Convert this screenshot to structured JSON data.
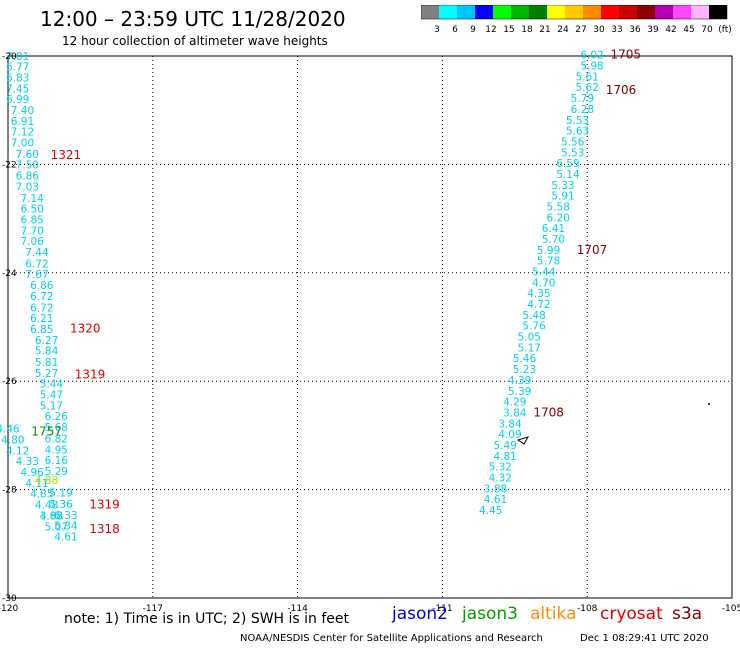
{
  "header": {
    "title": "12:00 – 23:59 UTC 11/28/2020",
    "subtitle": "12 hour collection of altimeter wave heights"
  },
  "colorbar": {
    "labels": [
      "3",
      "6",
      "9",
      "12",
      "15",
      "18",
      "21",
      "24",
      "27",
      "30",
      "33",
      "36",
      "39",
      "42",
      "45",
      "70",
      "(ft)"
    ],
    "colors": [
      "#808080",
      "#00ffff",
      "#00c8ff",
      "#0000ff",
      "#00ff00",
      "#00b400",
      "#008000",
      "#ffff00",
      "#ffc800",
      "#ff8c00",
      "#ff0000",
      "#c80000",
      "#8b0000",
      "#b400b4",
      "#ff46ff",
      "#ffb4ff",
      "#000000"
    ]
  },
  "legend": {
    "items": [
      {
        "name": "jason2",
        "color": "#0000dd"
      },
      {
        "name": "jason3",
        "color": "#00a000"
      },
      {
        "name": "altika",
        "color": "#ff8c00"
      },
      {
        "name": "cryosat",
        "color": "#dd0000"
      },
      {
        "name": "s3a",
        "color": "#880000"
      }
    ]
  },
  "note": "note: 1) Time is in UTC; 2) SWH is in feet",
  "footer": {
    "left": "NOAA/NESDIS Center for Satellite Applications and Research",
    "right": "Dec  1 08:29:41 UTC 2020"
  },
  "chart_data": {
    "type": "scatter",
    "xlim": [
      -120,
      -105
    ],
    "ylim": [
      -30,
      -20
    ],
    "x_ticks": [
      -120,
      -117,
      -114,
      -111,
      -108,
      -105
    ],
    "x_tick_labels": [
      "-120",
      "-117",
      "-114",
      "-111",
      "-108",
      "-105"
    ],
    "y_ticks": [
      -20,
      -22,
      -24,
      -26,
      -28,
      -30
    ],
    "y_tick_labels": [
      "-20",
      "-22",
      "-24",
      "-26",
      "-28",
      "-30"
    ],
    "grid": true,
    "colors": {
      "cyan": "#00d2e6",
      "teal": "#00c8c8",
      "green": "#009600",
      "lime": "#96e600",
      "red": "#dd0000",
      "darkred": "#880000"
    },
    "series": [
      {
        "color": "cyan",
        "points": [
          {
            "x": -119.8,
            "y": -20.07,
            "v": "7.01"
          },
          {
            "x": -119.8,
            "y": -20.27,
            "v": "6.77"
          },
          {
            "x": -119.8,
            "y": -20.47,
            "v": "6.83"
          },
          {
            "x": -119.8,
            "y": -20.67,
            "v": "7.45"
          },
          {
            "x": -119.8,
            "y": -20.87,
            "v": "6.99"
          },
          {
            "x": -119.7,
            "y": -21.07,
            "v": "7.40"
          },
          {
            "x": -119.7,
            "y": -21.27,
            "v": "6.91"
          },
          {
            "x": -119.7,
            "y": -21.47,
            "v": "7.12"
          },
          {
            "x": -119.7,
            "y": -21.67,
            "v": "7.00"
          },
          {
            "x": -119.6,
            "y": -21.88,
            "v": "7.60"
          },
          {
            "x": -119.6,
            "y": -22.08,
            "v": "7.50"
          },
          {
            "x": -119.6,
            "y": -22.28,
            "v": "6.86"
          },
          {
            "x": -119.6,
            "y": -22.48,
            "v": "7.03"
          },
          {
            "x": -119.5,
            "y": -22.69,
            "v": "7.14"
          },
          {
            "x": -119.5,
            "y": -22.89,
            "v": "6.50"
          },
          {
            "x": -119.5,
            "y": -23.09,
            "v": "6.85"
          },
          {
            "x": -119.5,
            "y": -23.29,
            "v": "7.70"
          },
          {
            "x": -119.5,
            "y": -23.49,
            "v": "7.06"
          },
          {
            "x": -119.4,
            "y": -23.69,
            "v": "7.44"
          },
          {
            "x": -119.4,
            "y": -23.9,
            "v": "6.72"
          },
          {
            "x": -119.4,
            "y": -24.1,
            "v": "7.67"
          },
          {
            "x": -119.3,
            "y": -24.3,
            "v": "6.86"
          },
          {
            "x": -119.3,
            "y": -24.5,
            "v": "6.72"
          },
          {
            "x": -119.3,
            "y": -24.71,
            "v": "6.72"
          },
          {
            "x": -119.3,
            "y": -24.91,
            "v": "6.21"
          },
          {
            "x": -119.3,
            "y": -25.11,
            "v": "6.85"
          },
          {
            "x": -119.2,
            "y": -25.31,
            "v": "6.27"
          },
          {
            "x": -119.2,
            "y": -25.51,
            "v": "5.84"
          },
          {
            "x": -119.2,
            "y": -25.72,
            "v": "5.81"
          },
          {
            "x": -119.2,
            "y": -25.92,
            "v": "5.27"
          },
          {
            "x": -119.1,
            "y": -26.12,
            "v": "5.44"
          },
          {
            "x": -119.1,
            "y": -26.32,
            "v": "5.47"
          },
          {
            "x": -119.1,
            "y": -26.52,
            "v": "5.17"
          },
          {
            "x": -119.0,
            "y": -26.72,
            "v": "6.26"
          },
          {
            "x": -119.0,
            "y": -26.92,
            "v": "5.68"
          },
          {
            "x": -119.0,
            "y": -27.13,
            "v": "6.82"
          },
          {
            "x": -119.0,
            "y": -27.33,
            "v": "4.95"
          },
          {
            "x": -119.0,
            "y": -27.53,
            "v": "6.16"
          },
          {
            "x": -119.0,
            "y": -27.73,
            "v": "5.29"
          },
          {
            "x": -118.9,
            "y": -28.13,
            "v": "5.19"
          },
          {
            "x": -118.9,
            "y": -28.34,
            "v": "5.36"
          },
          {
            "x": -118.8,
            "y": -28.54,
            "v": "6.33"
          },
          {
            "x": -118.8,
            "y": -28.74,
            "v": "5.34"
          },
          {
            "x": -118.8,
            "y": -28.94,
            "v": "4.61"
          },
          {
            "x": -120.0,
            "y": -26.95,
            "v": "4.46"
          },
          {
            "x": -119.9,
            "y": -27.15,
            "v": "4.80"
          },
          {
            "x": -119.8,
            "y": -27.35,
            "v": "4.12"
          },
          {
            "x": -119.6,
            "y": -27.55,
            "v": "4.33"
          },
          {
            "x": -119.5,
            "y": -27.75,
            "v": "4.96"
          },
          {
            "x": -119.4,
            "y": -27.95,
            "v": "4.11"
          },
          {
            "x": -119.3,
            "y": -28.15,
            "v": "4.85"
          },
          {
            "x": -119.2,
            "y": -28.35,
            "v": "4.48"
          },
          {
            "x": -119.1,
            "y": -28.55,
            "v": "3.88"
          },
          {
            "x": -119.1,
            "y": -28.55,
            "v": "4.63"
          },
          {
            "x": -119.0,
            "y": -28.75,
            "v": "5.07"
          },
          {
            "x": -107.9,
            "y": -20.05,
            "v": "6.02"
          },
          {
            "x": -107.9,
            "y": -20.25,
            "v": "5.98"
          },
          {
            "x": -108.0,
            "y": -20.45,
            "v": "5.61"
          },
          {
            "x": -108.0,
            "y": -20.65,
            "v": "5.62"
          },
          {
            "x": -108.1,
            "y": -20.85,
            "v": "5.79"
          },
          {
            "x": -108.1,
            "y": -21.05,
            "v": "6.28"
          },
          {
            "x": -108.2,
            "y": -21.25,
            "v": "5.53"
          },
          {
            "x": -108.2,
            "y": -21.45,
            "v": "5.63"
          },
          {
            "x": -108.3,
            "y": -21.65,
            "v": "5.56"
          },
          {
            "x": -108.3,
            "y": -21.85,
            "v": "5.53"
          },
          {
            "x": -108.4,
            "y": -22.05,
            "v": "6.59"
          },
          {
            "x": -108.4,
            "y": -22.25,
            "v": "5.14"
          },
          {
            "x": -108.5,
            "y": -22.45,
            "v": "5.33"
          },
          {
            "x": -108.5,
            "y": -22.65,
            "v": "5.91"
          },
          {
            "x": -108.6,
            "y": -22.85,
            "v": "5.58"
          },
          {
            "x": -108.6,
            "y": -23.05,
            "v": "6.20"
          },
          {
            "x": -108.7,
            "y": -23.25,
            "v": "6.41"
          },
          {
            "x": -108.7,
            "y": -23.45,
            "v": "5.70"
          },
          {
            "x": -108.8,
            "y": -23.65,
            "v": "5.99"
          },
          {
            "x": -108.8,
            "y": -23.85,
            "v": "5.78"
          },
          {
            "x": -108.9,
            "y": -24.05,
            "v": "5.44"
          },
          {
            "x": -108.9,
            "y": -24.25,
            "v": "4.70"
          },
          {
            "x": -109.0,
            "y": -24.45,
            "v": "4.35"
          },
          {
            "x": -109.0,
            "y": -24.65,
            "v": "4.72"
          },
          {
            "x": -109.1,
            "y": -24.85,
            "v": "5.48"
          },
          {
            "x": -109.1,
            "y": -25.05,
            "v": "5.76"
          },
          {
            "x": -109.2,
            "y": -25.25,
            "v": "5.05"
          },
          {
            "x": -109.2,
            "y": -25.45,
            "v": "5.17"
          },
          {
            "x": -109.3,
            "y": -25.65,
            "v": "5.46"
          },
          {
            "x": -109.3,
            "y": -25.85,
            "v": "5.23"
          },
          {
            "x": -109.4,
            "y": -26.05,
            "v": "4.39"
          },
          {
            "x": -109.4,
            "y": -26.25,
            "v": "5.39"
          },
          {
            "x": -109.5,
            "y": -26.45,
            "v": "4.29"
          },
          {
            "x": -109.5,
            "y": -26.65,
            "v": "3.84"
          },
          {
            "x": -109.6,
            "y": -26.85,
            "v": "3.84"
          },
          {
            "x": -109.6,
            "y": -27.05,
            "v": "4.09"
          },
          {
            "x": -109.7,
            "y": -27.25,
            "v": "5.49"
          },
          {
            "x": -109.7,
            "y": -27.45,
            "v": "4.81"
          },
          {
            "x": -109.8,
            "y": -27.65,
            "v": "5.32"
          },
          {
            "x": -109.8,
            "y": -27.85,
            "v": "4.32"
          },
          {
            "x": -109.9,
            "y": -28.05,
            "v": "3.88"
          },
          {
            "x": -109.9,
            "y": -28.25,
            "v": "4.61"
          },
          {
            "x": -110.0,
            "y": -28.45,
            "v": "4.45"
          }
        ]
      },
      {
        "color": "lime",
        "points": [
          {
            "x": -119.2,
            "y": -27.9,
            "v": "4.88"
          }
        ]
      }
    ],
    "labels": [
      {
        "x": -118.8,
        "y": -21.9,
        "text": "1321",
        "color": "red"
      },
      {
        "x": -118.4,
        "y": -25.1,
        "text": "1320",
        "color": "red"
      },
      {
        "x": -118.3,
        "y": -25.95,
        "text": "1319",
        "color": "red"
      },
      {
        "x": -118.0,
        "y": -28.35,
        "text": "1319",
        "color": "red"
      },
      {
        "x": -118.0,
        "y": -28.8,
        "text": "1318",
        "color": "red"
      },
      {
        "x": -119.2,
        "y": -27.0,
        "text": "1757",
        "color": "green"
      },
      {
        "x": -107.2,
        "y": -20.05,
        "text": "1705",
        "color": "darkred"
      },
      {
        "x": -107.3,
        "y": -20.7,
        "text": "1706",
        "color": "darkred"
      },
      {
        "x": -107.9,
        "y": -23.65,
        "text": "1707",
        "color": "darkred"
      },
      {
        "x": -108.8,
        "y": -26.65,
        "text": "1708",
        "color": "darkred"
      }
    ]
  }
}
